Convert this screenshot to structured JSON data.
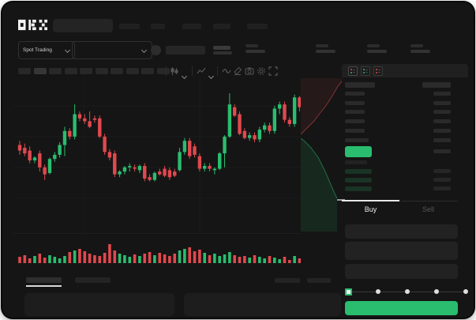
{
  "app": {
    "name": "OKX",
    "logo": "okx-pixel-logo"
  },
  "colors": {
    "green": "#2abd6f",
    "red": "#e0494e",
    "window_bg": "#151515",
    "placeholder": "#232323",
    "active_tab_indicator": "#e8e8e8"
  },
  "header": {
    "nav_placeholder_count": 5,
    "search_placeholder": ""
  },
  "market_bar": {
    "market_type_label": "Spot Trading",
    "stat_block_count": 4
  },
  "chart_toolbar": {
    "timeframe_button_count": 10,
    "icons": [
      "candle-interval",
      "chevron-down",
      "indicator",
      "chevron-down",
      "line-tool",
      "draw-tool",
      "camera",
      "settings",
      "fullscreen"
    ]
  },
  "order_book": {
    "view_mode_icons": [
      "book-combined",
      "book-bids",
      "book-asks"
    ],
    "column_header_widths": [
      38,
      36
    ],
    "asks": [
      {
        "price_w": 25,
        "amount_w": 22
      },
      {
        "price_w": 25,
        "amount_w": 22
      },
      {
        "price_w": 25,
        "amount_w": 22
      },
      {
        "price_w": 25,
        "amount_w": 22
      },
      {
        "price_w": 25,
        "amount_w": 22
      },
      {
        "price_w": 30,
        "amount_w": 22
      }
    ],
    "last_price_row": {
      "highlight": "green",
      "price_w": 34,
      "amount_w": 22
    },
    "bids": [
      {
        "price_w": 28,
        "amount_w": 0,
        "tint": false
      },
      {
        "price_w": 34,
        "amount_w": 22,
        "tint": true
      },
      {
        "price_w": 34,
        "amount_w": 22,
        "tint": true
      },
      {
        "price_w": 34,
        "amount_w": 22,
        "tint": true
      }
    ]
  },
  "order_panel": {
    "buy_tab_label": "Buy",
    "sell_tab_label": "Sell",
    "active_tab": "Buy",
    "input_count": 3,
    "slider": {
      "stops_percent": [
        0,
        25,
        50,
        75,
        100
      ],
      "value_percent": 0
    },
    "submit_button_color": "#2abd6f"
  },
  "bottom_bar": {
    "tab_placeholder_count": 2,
    "active_tab_index": 0,
    "panel_count": 2
  },
  "chart_data": {
    "type": "candlestick",
    "note": "wireframe chart, no axis labels visible; values normalized 0-100 estimated from pixels",
    "price_range": [
      0,
      100
    ],
    "candles_ohlc": [
      [
        63,
        66,
        56,
        59
      ],
      [
        61,
        64,
        55,
        57
      ],
      [
        59,
        62,
        50,
        52
      ],
      [
        52,
        55,
        50,
        54
      ],
      [
        57,
        59,
        44,
        47
      ],
      [
        47,
        49,
        38,
        42
      ],
      [
        43,
        54,
        42,
        53
      ],
      [
        53,
        58,
        51,
        56
      ],
      [
        56,
        65,
        54,
        63
      ],
      [
        63,
        76,
        55,
        73
      ],
      [
        73,
        75,
        67,
        69
      ],
      [
        69,
        92,
        67,
        85
      ],
      [
        85,
        87,
        80,
        82
      ],
      [
        82,
        85,
        78,
        80
      ],
      [
        80,
        87,
        75,
        76
      ],
      [
        82,
        84,
        79,
        81
      ],
      [
        82,
        84,
        68,
        69
      ],
      [
        69,
        71,
        56,
        58
      ],
      [
        58,
        60,
        52,
        54
      ],
      [
        57,
        59,
        40,
        42
      ],
      [
        42,
        45,
        40,
        44
      ],
      [
        44,
        48,
        42,
        47
      ],
      [
        47,
        50,
        44,
        48
      ],
      [
        47,
        49,
        44,
        46
      ],
      [
        45,
        49,
        43,
        48
      ],
      [
        48,
        50,
        37,
        39
      ],
      [
        40,
        42,
        37,
        38
      ],
      [
        38,
        44,
        37,
        43
      ],
      [
        44,
        46,
        41,
        42
      ],
      [
        46,
        48,
        40,
        41
      ],
      [
        45,
        47,
        38,
        40
      ],
      [
        44,
        46,
        40,
        41
      ],
      [
        45,
        61,
        44,
        58
      ],
      [
        58,
        68,
        56,
        66
      ],
      [
        66,
        68,
        53,
        55
      ],
      [
        62,
        64,
        54,
        56
      ],
      [
        55,
        57,
        44,
        46
      ],
      [
        46,
        50,
        44,
        48
      ],
      [
        48,
        50,
        44,
        46
      ],
      [
        45,
        47,
        42,
        46
      ],
      [
        46,
        58,
        45,
        57
      ],
      [
        57,
        70,
        47,
        69
      ],
      [
        69,
        100,
        68,
        92
      ],
      [
        90,
        92,
        83,
        84
      ],
      [
        85,
        87,
        70,
        71
      ],
      [
        73,
        75,
        67,
        68
      ],
      [
        68,
        72,
        66,
        70
      ],
      [
        70,
        72,
        65,
        67
      ],
      [
        67,
        76,
        65,
        74
      ],
      [
        74,
        79,
        72,
        77
      ],
      [
        77,
        79,
        71,
        73
      ],
      [
        73,
        91,
        71,
        89
      ],
      [
        89,
        94,
        85,
        92
      ],
      [
        92,
        94,
        79,
        81
      ],
      [
        81,
        83,
        76,
        78
      ],
      [
        78,
        99,
        76,
        97
      ],
      [
        97,
        98,
        87,
        90
      ]
    ],
    "volumes": [
      8,
      10,
      6,
      9,
      12,
      7,
      10,
      8,
      6,
      9,
      14,
      16,
      18,
      15,
      12,
      10,
      9,
      13,
      24,
      16,
      12,
      10,
      8,
      11,
      9,
      12,
      14,
      10,
      13,
      11,
      9,
      12,
      16,
      18,
      20,
      15,
      17,
      13,
      10,
      12,
      9,
      11,
      14,
      10,
      8,
      9,
      7,
      10,
      8,
      6,
      9,
      7,
      5,
      8,
      4,
      9,
      6
    ],
    "depth_profile": {
      "orientation": "vertical-right-edge",
      "asks_steps": [
        [
          0,
          71
        ],
        [
          5,
          66
        ],
        [
          9,
          62
        ],
        [
          13,
          58
        ],
        [
          17,
          54
        ],
        [
          20,
          50
        ],
        [
          23,
          46
        ],
        [
          27,
          41
        ],
        [
          31,
          36
        ],
        [
          35,
          30
        ],
        [
          39,
          24
        ],
        [
          43,
          17
        ],
        [
          47,
          10
        ],
        [
          52,
          4
        ]
      ],
      "bids_steps": [
        [
          0,
          76
        ],
        [
          4,
          79
        ],
        [
          7,
          82
        ],
        [
          10,
          85
        ],
        [
          13,
          88
        ],
        [
          16,
          92
        ],
        [
          19,
          96
        ],
        [
          22,
          100
        ],
        [
          25,
          106
        ],
        [
          28,
          112
        ],
        [
          31,
          118
        ],
        [
          34,
          125
        ],
        [
          37,
          132
        ],
        [
          40,
          139
        ],
        [
          43,
          146
        ],
        [
          46,
          152
        ]
      ]
    }
  }
}
